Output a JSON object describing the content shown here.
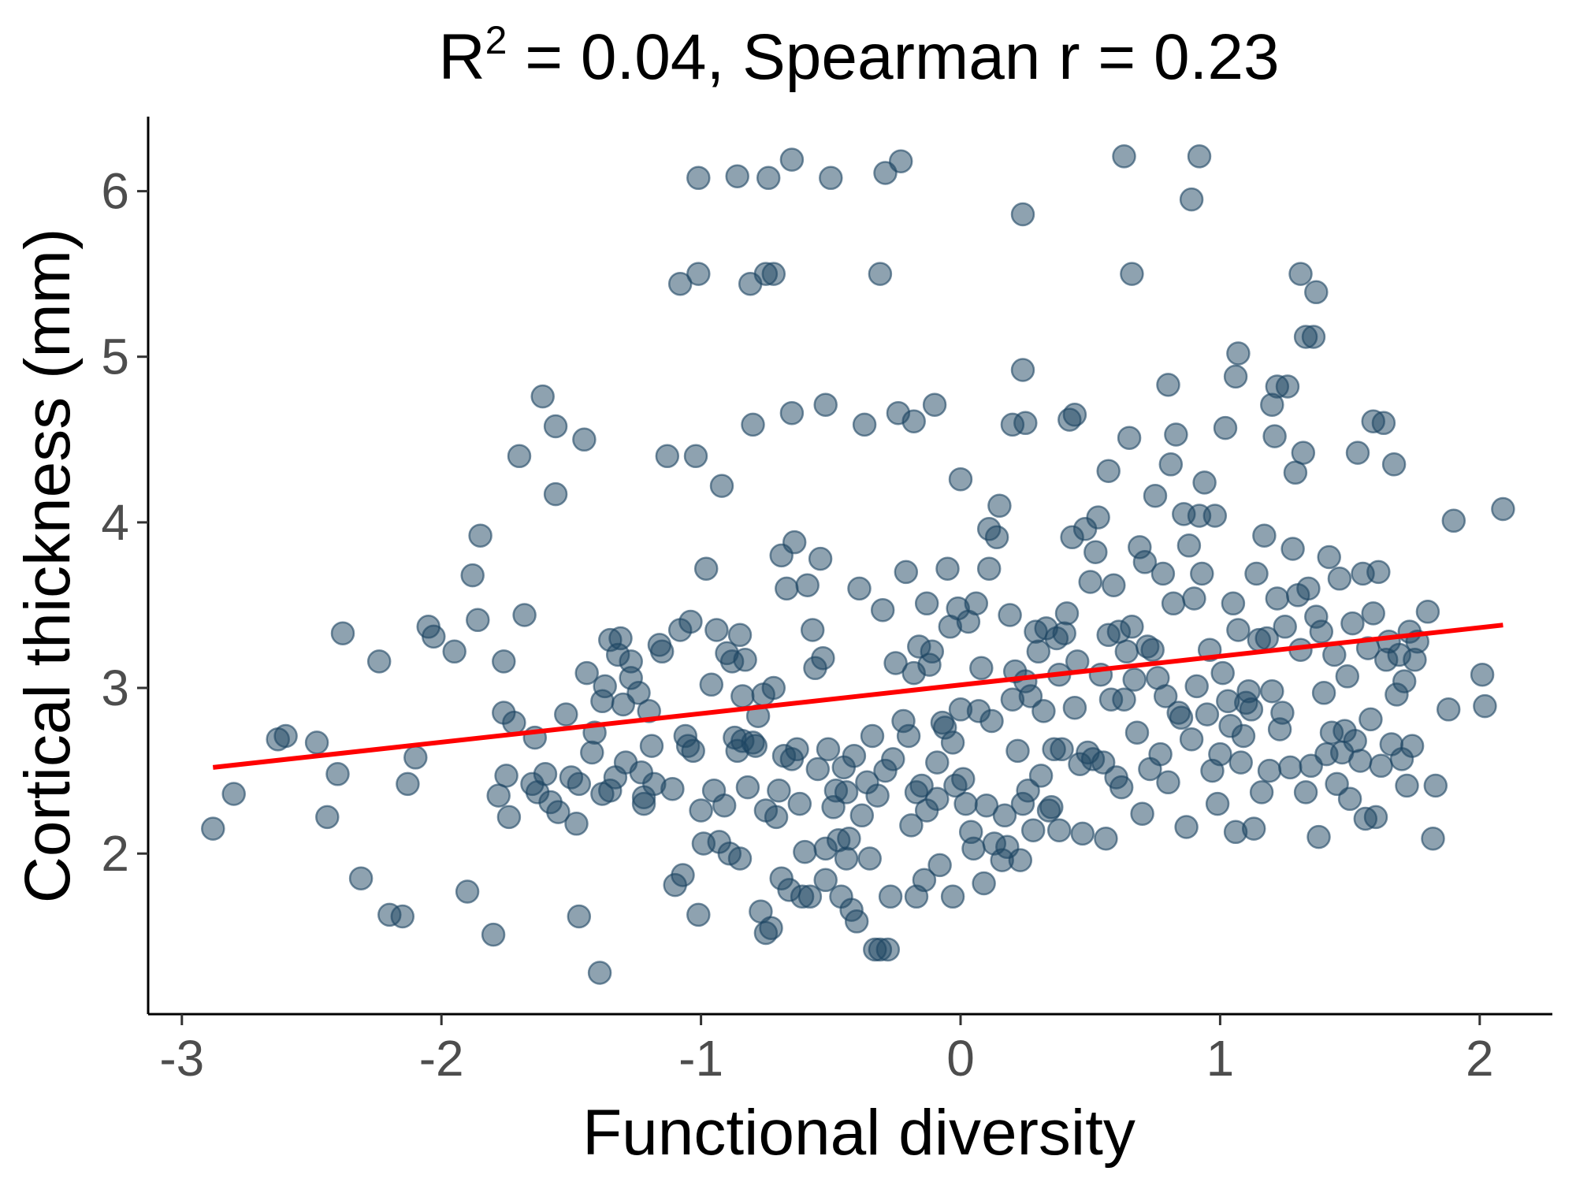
{
  "chart_data": {
    "type": "scatter",
    "title": {
      "prefix": "R",
      "superscript": "2",
      "suffix": " = 0.04, Spearman r = 0.23"
    },
    "xlabel": "Functional diversity",
    "ylabel": "Cortical thickness (mm)",
    "xlim": [
      -3.13,
      2.28
    ],
    "ylim": [
      1.03,
      6.45
    ],
    "x_ticks": [
      -3,
      -2,
      -1,
      0,
      1,
      2
    ],
    "y_ticks": [
      2,
      3,
      4,
      5,
      6
    ],
    "grid": false,
    "legend": "none",
    "colors": {
      "point_fill": "#1d4562",
      "point_stroke": "#1d4562",
      "fit_line": "#ff0000"
    },
    "fit_line": {
      "x": [
        -2.88,
        2.09
      ],
      "y": [
        2.52,
        3.38
      ]
    },
    "points": [
      [
        -2.88,
        2.15
      ],
      [
        -2.8,
        2.36
      ],
      [
        -2.63,
        2.69
      ],
      [
        -2.6,
        2.71
      ],
      [
        -2.48,
        2.67
      ],
      [
        -2.44,
        2.22
      ],
      [
        -2.4,
        2.48
      ],
      [
        -2.38,
        3.33
      ],
      [
        -2.31,
        1.85
      ],
      [
        -2.24,
        3.16
      ],
      [
        -2.2,
        1.63
      ],
      [
        -2.15,
        1.62
      ],
      [
        -2.13,
        2.42
      ],
      [
        -2.1,
        2.58
      ],
      [
        -2.05,
        3.37
      ],
      [
        -2.03,
        3.31
      ],
      [
        -1.95,
        3.22
      ],
      [
        -1.9,
        1.77
      ],
      [
        -1.88,
        3.68
      ],
      [
        -1.86,
        3.41
      ],
      [
        -1.85,
        3.92
      ],
      [
        -1.8,
        1.51
      ],
      [
        -1.78,
        2.35
      ],
      [
        -1.76,
        3.16
      ],
      [
        -1.76,
        2.85
      ],
      [
        -1.75,
        2.47
      ],
      [
        -1.74,
        2.22
      ],
      [
        -1.72,
        2.79
      ],
      [
        -1.7,
        4.4
      ],
      [
        -1.68,
        3.44
      ],
      [
        -1.65,
        2.42
      ],
      [
        -1.64,
        2.7
      ],
      [
        -1.63,
        2.37
      ],
      [
        -1.61,
        4.76
      ],
      [
        -1.6,
        2.48
      ],
      [
        -1.58,
        2.31
      ],
      [
        -1.56,
        4.58
      ],
      [
        -1.56,
        4.17
      ],
      [
        -1.55,
        2.25
      ],
      [
        -1.52,
        2.84
      ],
      [
        -1.5,
        2.46
      ],
      [
        -1.48,
        2.18
      ],
      [
        -1.47,
        1.62
      ],
      [
        -1.47,
        2.42
      ],
      [
        -1.45,
        4.5
      ],
      [
        -1.44,
        3.09
      ],
      [
        -1.42,
        2.61
      ],
      [
        -1.41,
        2.73
      ],
      [
        -1.39,
        1.28
      ],
      [
        -1.38,
        2.36
      ],
      [
        -1.38,
        2.92
      ],
      [
        -1.37,
        3.01
      ],
      [
        -1.35,
        3.29
      ],
      [
        -1.35,
        2.38
      ],
      [
        -1.33,
        2.46
      ],
      [
        -1.32,
        3.2
      ],
      [
        -1.31,
        3.3
      ],
      [
        -1.3,
        2.9
      ],
      [
        -1.29,
        2.55
      ],
      [
        -1.27,
        3.06
      ],
      [
        -1.27,
        3.16
      ],
      [
        -1.24,
        2.97
      ],
      [
        -1.23,
        2.49
      ],
      [
        -1.22,
        2.34
      ],
      [
        -1.22,
        2.3
      ],
      [
        -1.2,
        2.86
      ],
      [
        -1.19,
        2.65
      ],
      [
        -1.18,
        2.42
      ],
      [
        -1.16,
        3.26
      ],
      [
        -1.15,
        3.22
      ],
      [
        -1.13,
        4.4
      ],
      [
        -1.11,
        2.39
      ],
      [
        -1.1,
        1.81
      ],
      [
        -1.08,
        3.35
      ],
      [
        -1.07,
        1.87
      ],
      [
        -1.06,
        2.71
      ],
      [
        -1.05,
        2.65
      ],
      [
        -1.04,
        3.4
      ],
      [
        -1.03,
        2.62
      ],
      [
        -1.02,
        4.4
      ],
      [
        -1.01,
        1.63
      ],
      [
        -1.0,
        2.26
      ],
      [
        -0.99,
        2.06
      ],
      [
        -0.98,
        3.72
      ],
      [
        -0.96,
        3.02
      ],
      [
        -0.95,
        2.38
      ],
      [
        -0.94,
        3.35
      ],
      [
        -0.93,
        2.07
      ],
      [
        -0.92,
        4.22
      ],
      [
        -0.91,
        2.29
      ],
      [
        -0.9,
        3.21
      ],
      [
        -0.89,
        2.0
      ],
      [
        -0.88,
        3.16
      ],
      [
        -0.87,
        2.7
      ],
      [
        -0.86,
        2.62
      ],
      [
        -0.85,
        3.32
      ],
      [
        -0.85,
        1.97
      ],
      [
        -0.84,
        2.95
      ],
      [
        -0.84,
        2.68
      ],
      [
        -0.83,
        3.17
      ],
      [
        -0.82,
        2.4
      ],
      [
        -0.81,
        5.44
      ],
      [
        -0.8,
        2.67
      ],
      [
        -0.79,
        2.65
      ],
      [
        -0.78,
        2.83
      ],
      [
        -0.77,
        1.65
      ],
      [
        -0.76,
        2.96
      ],
      [
        -0.75,
        1.52
      ],
      [
        -0.75,
        2.26
      ],
      [
        -0.74,
        6.08
      ],
      [
        -0.73,
        1.55
      ],
      [
        -0.72,
        5.5
      ],
      [
        -0.72,
        3.0
      ],
      [
        -0.71,
        2.22
      ],
      [
        -0.7,
        2.38
      ],
      [
        -0.69,
        3.8
      ],
      [
        -0.69,
        1.85
      ],
      [
        -0.68,
        2.59
      ],
      [
        -0.67,
        3.6
      ],
      [
        -0.66,
        1.78
      ],
      [
        -0.65,
        2.57
      ],
      [
        -0.64,
        3.88
      ],
      [
        -0.63,
        2.63
      ],
      [
        -0.62,
        2.3
      ],
      [
        -0.61,
        1.74
      ],
      [
        -0.6,
        2.01
      ],
      [
        -0.59,
        3.62
      ],
      [
        -0.58,
        1.74
      ],
      [
        -0.57,
        3.35
      ],
      [
        -0.56,
        3.12
      ],
      [
        -0.55,
        2.51
      ],
      [
        -0.54,
        3.78
      ],
      [
        -0.53,
        3.18
      ],
      [
        -0.52,
        1.84
      ],
      [
        -0.52,
        2.03
      ],
      [
        -0.51,
        2.63
      ],
      [
        -0.5,
        6.08
      ],
      [
        -0.49,
        2.28
      ],
      [
        -0.48,
        2.38
      ],
      [
        -0.47,
        2.08
      ],
      [
        -0.46,
        1.74
      ],
      [
        -0.45,
        2.52
      ],
      [
        -0.44,
        2.37
      ],
      [
        -0.44,
        1.97
      ],
      [
        -0.43,
        2.09
      ],
      [
        -0.42,
        1.66
      ],
      [
        -0.41,
        2.59
      ],
      [
        -0.4,
        1.59
      ],
      [
        -0.39,
        3.6
      ],
      [
        -0.38,
        2.23
      ],
      [
        -0.37,
        4.59
      ],
      [
        -0.36,
        2.43
      ],
      [
        -0.35,
        1.97
      ],
      [
        -0.34,
        2.71
      ],
      [
        -0.33,
        1.42
      ],
      [
        -0.32,
        2.35
      ],
      [
        -0.31,
        5.5
      ],
      [
        -0.31,
        1.42
      ],
      [
        -0.3,
        3.47
      ],
      [
        -0.29,
        2.5
      ],
      [
        -0.28,
        1.42
      ],
      [
        -0.27,
        1.74
      ],
      [
        -0.26,
        2.57
      ],
      [
        -0.25,
        3.15
      ],
      [
        -0.24,
        4.66
      ],
      [
        -0.23,
        6.18
      ],
      [
        -0.22,
        2.8
      ],
      [
        -0.21,
        3.7
      ],
      [
        -0.2,
        2.71
      ],
      [
        -0.19,
        2.17
      ],
      [
        -0.18,
        3.09
      ],
      [
        -0.17,
        1.74
      ],
      [
        -0.17,
        2.37
      ],
      [
        -0.16,
        3.25
      ],
      [
        -0.15,
        2.41
      ],
      [
        -0.14,
        1.84
      ],
      [
        -0.13,
        2.26
      ],
      [
        -0.13,
        3.51
      ],
      [
        -0.12,
        3.14
      ],
      [
        -0.11,
        3.22
      ],
      [
        -0.1,
        4.71
      ],
      [
        -0.09,
        2.55
      ],
      [
        -0.09,
        2.33
      ],
      [
        -0.08,
        1.93
      ],
      [
        -0.07,
        2.79
      ],
      [
        -0.06,
        2.76
      ],
      [
        -0.05,
        3.72
      ],
      [
        -0.04,
        3.37
      ],
      [
        -0.03,
        1.74
      ],
      [
        -0.03,
        2.67
      ],
      [
        -0.02,
        2.41
      ],
      [
        -0.01,
        3.48
      ],
      [
        0.0,
        2.87
      ],
      [
        0.0,
        4.26
      ],
      [
        0.01,
        2.45
      ],
      [
        0.02,
        2.3
      ],
      [
        0.03,
        3.4
      ],
      [
        0.04,
        2.13
      ],
      [
        0.05,
        2.03
      ],
      [
        0.06,
        3.51
      ],
      [
        0.07,
        2.86
      ],
      [
        0.08,
        3.12
      ],
      [
        0.09,
        1.82
      ],
      [
        0.1,
        2.29
      ],
      [
        0.11,
        3.96
      ],
      [
        0.11,
        3.72
      ],
      [
        0.12,
        2.8
      ],
      [
        0.13,
        2.06
      ],
      [
        0.14,
        3.91
      ],
      [
        0.15,
        4.1
      ],
      [
        0.16,
        1.96
      ],
      [
        0.17,
        2.23
      ],
      [
        0.18,
        2.04
      ],
      [
        0.19,
        3.44
      ],
      [
        0.2,
        2.93
      ],
      [
        0.21,
        3.1
      ],
      [
        0.22,
        2.62
      ],
      [
        0.23,
        1.96
      ],
      [
        0.24,
        2.3
      ],
      [
        0.25,
        3.04
      ],
      [
        0.26,
        2.38
      ],
      [
        0.27,
        2.95
      ],
      [
        0.28,
        2.14
      ],
      [
        0.29,
        3.34
      ],
      [
        0.3,
        3.22
      ],
      [
        0.31,
        2.47
      ],
      [
        0.32,
        2.86
      ],
      [
        0.33,
        3.36
      ],
      [
        0.34,
        2.26
      ],
      [
        0.35,
        2.28
      ],
      [
        0.36,
        2.63
      ],
      [
        0.37,
        3.3
      ],
      [
        0.38,
        3.08
      ],
      [
        0.38,
        2.14
      ],
      [
        0.39,
        2.63
      ],
      [
        0.4,
        3.33
      ],
      [
        0.41,
        3.45
      ],
      [
        0.42,
        4.62
      ],
      [
        0.43,
        3.91
      ],
      [
        0.44,
        2.88
      ],
      [
        0.45,
        3.16
      ],
      [
        0.46,
        2.54
      ],
      [
        0.47,
        2.12
      ],
      [
        0.48,
        3.96
      ],
      [
        0.49,
        2.61
      ],
      [
        0.5,
        3.64
      ],
      [
        0.51,
        2.57
      ],
      [
        0.52,
        3.82
      ],
      [
        0.53,
        4.03
      ],
      [
        0.54,
        3.08
      ],
      [
        0.55,
        2.55
      ],
      [
        0.56,
        2.09
      ],
      [
        0.57,
        4.31
      ],
      [
        0.57,
        3.32
      ],
      [
        0.58,
        2.93
      ],
      [
        0.59,
        3.62
      ],
      [
        0.6,
        2.46
      ],
      [
        0.61,
        3.34
      ],
      [
        0.62,
        2.4
      ],
      [
        0.63,
        2.93
      ],
      [
        0.64,
        3.22
      ],
      [
        0.65,
        4.51
      ],
      [
        0.66,
        3.37
      ],
      [
        0.67,
        3.05
      ],
      [
        0.68,
        2.73
      ],
      [
        0.69,
        3.85
      ],
      [
        0.7,
        2.24
      ],
      [
        0.71,
        3.76
      ],
      [
        0.72,
        3.25
      ],
      [
        0.73,
        2.51
      ],
      [
        0.74,
        3.23
      ],
      [
        0.75,
        4.16
      ],
      [
        0.76,
        3.06
      ],
      [
        0.77,
        2.6
      ],
      [
        0.78,
        3.69
      ],
      [
        0.79,
        2.95
      ],
      [
        0.8,
        2.43
      ],
      [
        0.81,
        4.35
      ],
      [
        0.82,
        3.51
      ],
      [
        0.83,
        4.53
      ],
      [
        0.84,
        2.85
      ],
      [
        0.85,
        2.82
      ],
      [
        0.86,
        4.05
      ],
      [
        0.87,
        2.16
      ],
      [
        0.88,
        3.86
      ],
      [
        0.89,
        2.69
      ],
      [
        0.9,
        3.54
      ],
      [
        0.91,
        3.01
      ],
      [
        0.92,
        4.04
      ],
      [
        0.93,
        3.69
      ],
      [
        0.94,
        4.24
      ],
      [
        0.95,
        2.84
      ],
      [
        0.96,
        3.23
      ],
      [
        0.97,
        2.5
      ],
      [
        0.98,
        4.04
      ],
      [
        0.99,
        2.3
      ],
      [
        1.0,
        2.6
      ],
      [
        1.01,
        3.09
      ],
      [
        1.02,
        4.57
      ],
      [
        1.03,
        2.92
      ],
      [
        1.04,
        2.77
      ],
      [
        1.05,
        3.51
      ],
      [
        1.06,
        2.13
      ],
      [
        1.07,
        3.35
      ],
      [
        1.08,
        2.55
      ],
      [
        1.09,
        2.71
      ],
      [
        1.1,
        2.91
      ],
      [
        1.11,
        2.98
      ],
      [
        1.12,
        2.87
      ],
      [
        1.13,
        2.15
      ],
      [
        1.14,
        3.69
      ],
      [
        1.15,
        3.29
      ],
      [
        1.16,
        2.37
      ],
      [
        1.17,
        3.92
      ],
      [
        1.18,
        3.3
      ],
      [
        1.19,
        2.5
      ],
      [
        1.2,
        2.98
      ],
      [
        1.21,
        4.52
      ],
      [
        1.22,
        3.54
      ],
      [
        1.23,
        2.75
      ],
      [
        1.24,
        2.85
      ],
      [
        1.25,
        3.37
      ],
      [
        1.26,
        4.82
      ],
      [
        1.27,
        2.52
      ],
      [
        1.28,
        3.84
      ],
      [
        1.29,
        4.3
      ],
      [
        1.3,
        3.56
      ],
      [
        1.31,
        3.23
      ],
      [
        1.32,
        4.42
      ],
      [
        1.33,
        2.37
      ],
      [
        1.34,
        3.6
      ],
      [
        1.35,
        2.53
      ],
      [
        1.36,
        5.12
      ],
      [
        1.37,
        3.43
      ],
      [
        1.38,
        2.1
      ],
      [
        1.39,
        3.34
      ],
      [
        1.4,
        2.97
      ],
      [
        1.41,
        2.6
      ],
      [
        1.42,
        3.79
      ],
      [
        1.43,
        2.73
      ],
      [
        1.44,
        3.2
      ],
      [
        1.45,
        2.42
      ],
      [
        1.46,
        3.66
      ],
      [
        1.47,
        2.61
      ],
      [
        1.48,
        2.74
      ],
      [
        1.49,
        3.07
      ],
      [
        1.5,
        2.33
      ],
      [
        1.51,
        3.39
      ],
      [
        1.52,
        2.68
      ],
      [
        1.53,
        4.42
      ],
      [
        1.54,
        2.56
      ],
      [
        1.55,
        3.69
      ],
      [
        1.56,
        2.21
      ],
      [
        1.57,
        3.24
      ],
      [
        1.58,
        2.81
      ],
      [
        1.59,
        3.45
      ],
      [
        1.6,
        2.22
      ],
      [
        1.61,
        3.7
      ],
      [
        1.62,
        2.53
      ],
      [
        1.63,
        4.6
      ],
      [
        1.64,
        3.17
      ],
      [
        1.65,
        3.28
      ],
      [
        1.66,
        2.66
      ],
      [
        1.67,
        4.35
      ],
      [
        1.68,
        2.96
      ],
      [
        1.69,
        3.2
      ],
      [
        1.7,
        2.57
      ],
      [
        1.71,
        3.04
      ],
      [
        1.72,
        2.41
      ],
      [
        1.73,
        3.34
      ],
      [
        1.74,
        2.65
      ],
      [
        1.75,
        3.17
      ],
      [
        1.76,
        3.28
      ],
      [
        1.8,
        3.46
      ],
      [
        1.82,
        2.09
      ],
      [
        1.83,
        2.41
      ],
      [
        1.88,
        2.87
      ],
      [
        1.9,
        4.01
      ],
      [
        2.01,
        3.08
      ],
      [
        2.02,
        2.89
      ],
      [
        2.09,
        4.08
      ],
      [
        -1.01,
        6.08
      ],
      [
        -0.86,
        6.09
      ],
      [
        -0.65,
        6.19
      ],
      [
        -0.29,
        6.11
      ],
      [
        0.63,
        6.21
      ],
      [
        0.92,
        6.21
      ],
      [
        0.89,
        5.95
      ],
      [
        0.24,
        5.86
      ],
      [
        -1.01,
        5.5
      ],
      [
        -0.75,
        5.5
      ],
      [
        0.66,
        5.5
      ],
      [
        1.31,
        5.5
      ],
      [
        -1.08,
        5.44
      ],
      [
        1.37,
        5.39
      ],
      [
        1.33,
        5.12
      ],
      [
        1.07,
        5.02
      ],
      [
        1.06,
        4.88
      ],
      [
        1.22,
        4.82
      ],
      [
        0.24,
        4.92
      ],
      [
        0.8,
        4.83
      ],
      [
        -0.52,
        4.71
      ],
      [
        -0.65,
        4.66
      ],
      [
        1.2,
        4.71
      ],
      [
        0.44,
        4.65
      ],
      [
        -0.8,
        4.59
      ],
      [
        -0.18,
        4.61
      ],
      [
        0.25,
        4.6
      ],
      [
        0.2,
        4.59
      ],
      [
        1.59,
        4.61
      ]
    ]
  }
}
